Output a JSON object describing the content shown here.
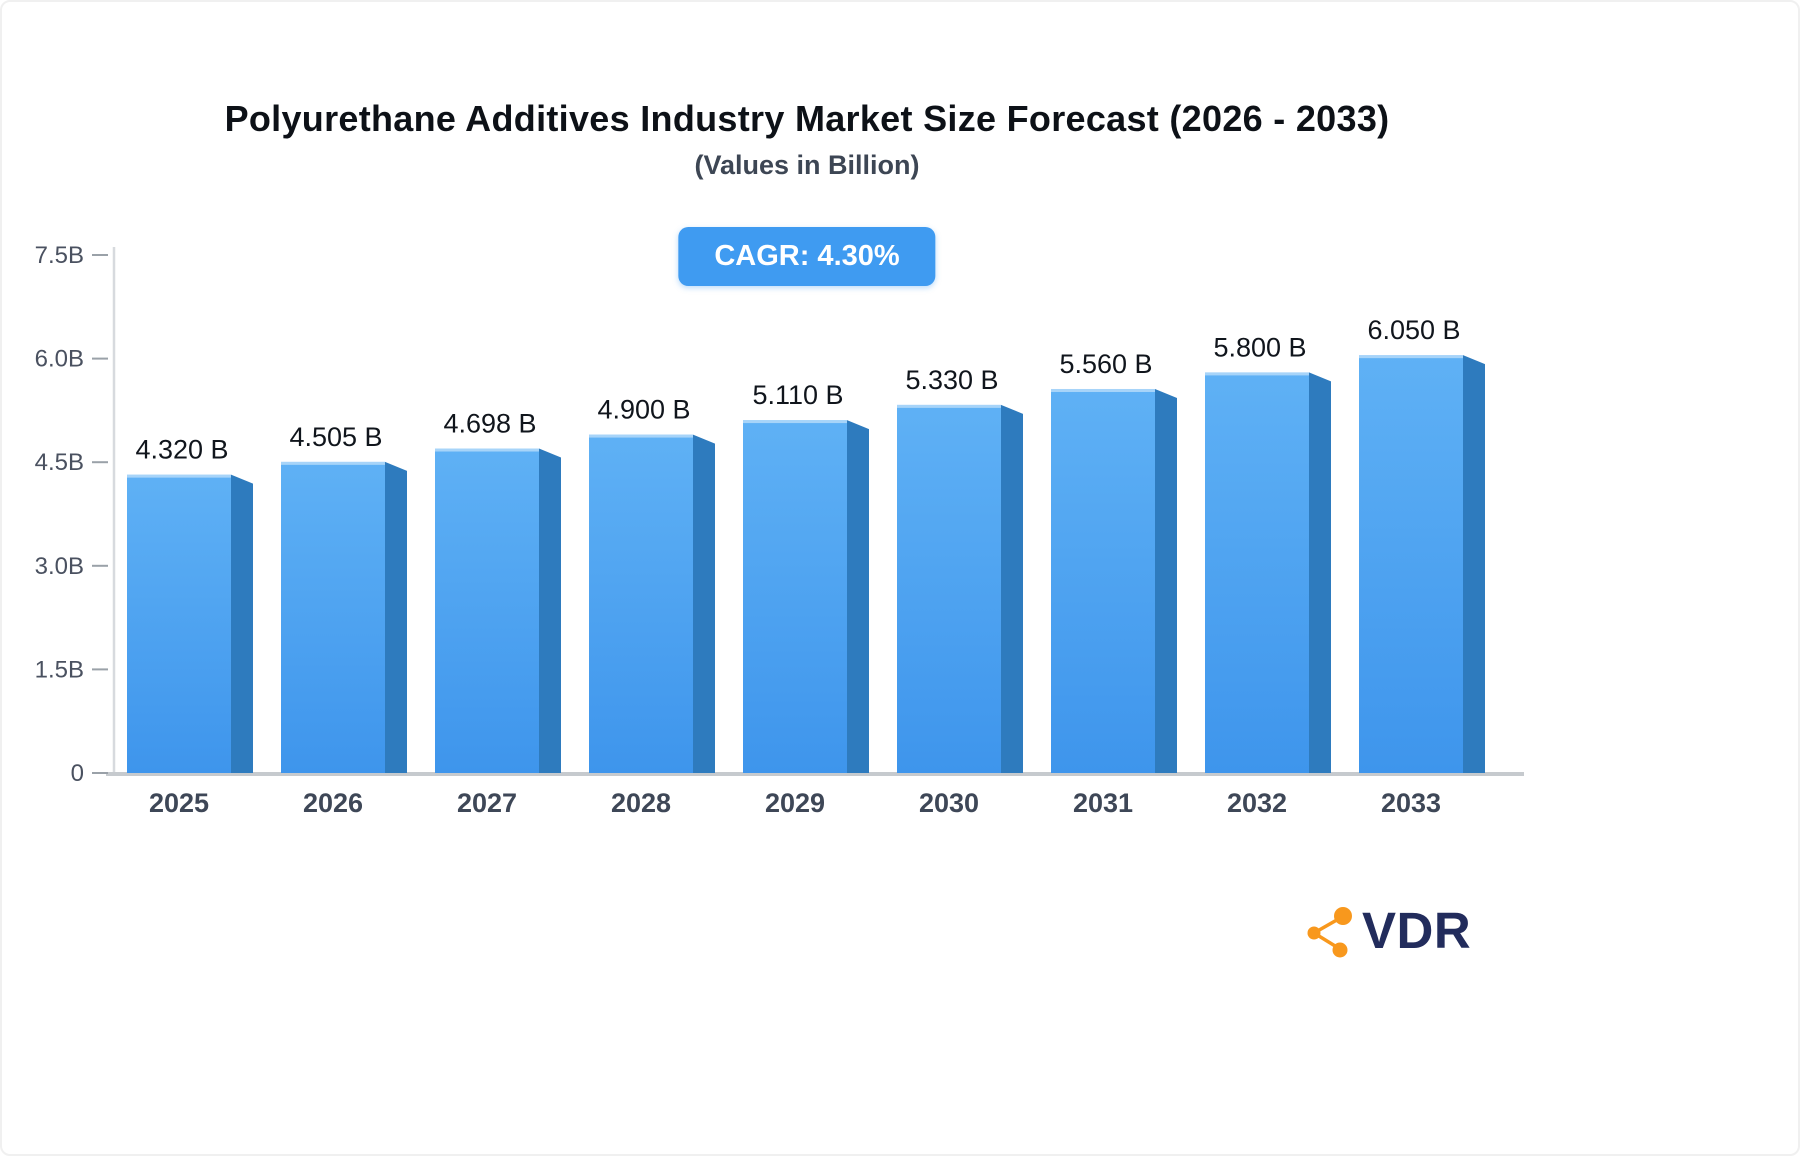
{
  "header": {
    "title": "Polyurethane Additives Industry Market Size Forecast (2026 - 2033)",
    "subtitle": "(Values in Billion)"
  },
  "badge": {
    "label": "CAGR: 4.30%",
    "background": "#3f9bf1",
    "text_color": "#ffffff"
  },
  "chart_data": {
    "type": "bar",
    "title": "Polyurethane Additives Industry Market Size Forecast (2026 - 2033)",
    "subtitle": "(Values in Billion)",
    "cagr": "4.30%",
    "categories": [
      "2025",
      "2026",
      "2027",
      "2028",
      "2029",
      "2030",
      "2031",
      "2032",
      "2033"
    ],
    "values": [
      4.32,
      4.505,
      4.698,
      4.9,
      5.11,
      5.33,
      5.56,
      5.8,
      6.05
    ],
    "value_labels": [
      "4.320 B",
      "4.505 B",
      "4.698 B",
      "4.900 B",
      "5.110 B",
      "5.330 B",
      "5.560 B",
      "5.800 B",
      "6.050 B"
    ],
    "xlabel": "",
    "ylabel": "",
    "ylim": [
      0,
      7.5
    ],
    "yticks": [
      0,
      1.5,
      3.0,
      4.5,
      6.0,
      7.5
    ],
    "ytick_labels": [
      "0",
      "1.5B",
      "3.0B",
      "4.5B",
      "6.0B",
      "7.5B"
    ],
    "grid": false,
    "legend": false,
    "bar_color_top": "#5fb1f5",
    "bar_color_bottom": "#3e95ec",
    "bar_side_color": "#2e7bbe",
    "axis_color": "#c6cace",
    "tick_label_color": "#4a5160",
    "x_label_color": "#3e4757",
    "value_label_color": "#10151c"
  },
  "logo": {
    "text": "VDR",
    "text_color": "#222c5c",
    "icon_name": "network-icon",
    "icon_color": "#f8981d"
  }
}
